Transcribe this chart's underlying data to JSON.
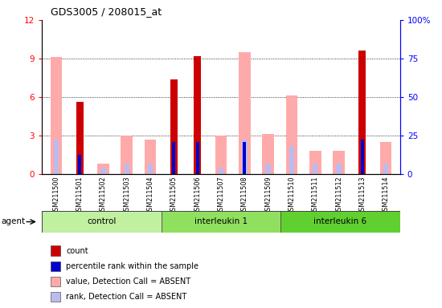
{
  "title": "GDS3005 / 208015_at",
  "samples": [
    "GSM211500",
    "GSM211501",
    "GSM211502",
    "GSM211503",
    "GSM211504",
    "GSM211505",
    "GSM211506",
    "GSM211507",
    "GSM211508",
    "GSM211509",
    "GSM211510",
    "GSM211511",
    "GSM211512",
    "GSM211513",
    "GSM211514"
  ],
  "groups": [
    {
      "label": "control",
      "start": 0,
      "end": 5
    },
    {
      "label": "interleukin 1",
      "start": 5,
      "end": 10
    },
    {
      "label": "interleukin 6",
      "start": 10,
      "end": 15
    }
  ],
  "group_colors": [
    "#c0f0a0",
    "#90e060",
    "#60d030"
  ],
  "count": [
    0,
    5.6,
    0,
    0,
    0,
    7.4,
    9.2,
    0,
    0,
    0,
    0,
    0,
    0,
    9.6,
    0
  ],
  "percentile_rank": [
    0,
    1.5,
    0,
    0,
    0,
    2.5,
    2.5,
    0,
    2.5,
    0,
    0,
    0,
    0,
    2.7,
    0
  ],
  "value_absent": [
    9.1,
    0,
    0.8,
    3.0,
    2.7,
    0,
    0,
    3.0,
    9.5,
    3.1,
    6.1,
    1.8,
    1.8,
    0,
    2.5
  ],
  "rank_absent": [
    2.7,
    0,
    0.5,
    0.8,
    0.8,
    0,
    0.5,
    0.5,
    2.7,
    0.8,
    2.2,
    0.8,
    0.8,
    0,
    0.8
  ],
  "ylim_left": [
    0,
    12
  ],
  "ylim_right": [
    0,
    100
  ],
  "yticks_left": [
    0,
    3,
    6,
    9,
    12
  ],
  "yticks_right": [
    0,
    25,
    50,
    75,
    100
  ],
  "color_count": "#cc0000",
  "color_rank": "#0000cc",
  "color_value_absent": "#ffaaaa",
  "color_rank_absent": "#bbbbee",
  "agent_label": "agent",
  "legend_labels": [
    "count",
    "percentile rank within the sample",
    "value, Detection Call = ABSENT",
    "rank, Detection Call = ABSENT"
  ]
}
